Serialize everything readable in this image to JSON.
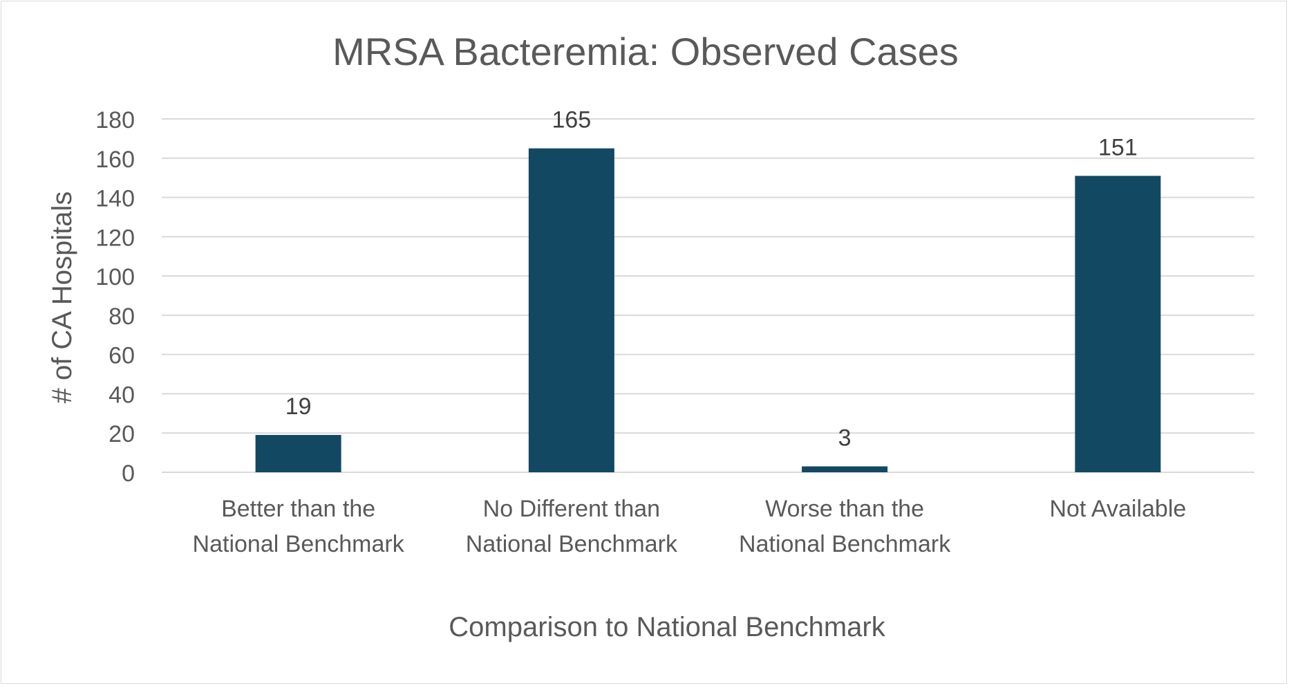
{
  "chart_data": {
    "type": "bar",
    "title": "MRSA Bacteremia: Observed Cases",
    "xlabel": "Comparison to National Benchmark",
    "ylabel": "# of CA Hospitals",
    "categories": [
      [
        "Better than the",
        "National Benchmark"
      ],
      [
        "No Different than",
        "National Benchmark"
      ],
      [
        "Worse than the",
        "National Benchmark"
      ],
      [
        "Not Available"
      ]
    ],
    "values": [
      19,
      165,
      3,
      151
    ],
    "data_labels": [
      "19",
      "165",
      "3",
      "151"
    ],
    "ylim": [
      0,
      180
    ],
    "yticks": [
      0,
      20,
      40,
      60,
      80,
      100,
      120,
      140,
      160,
      180
    ],
    "grid": true,
    "legend": "none",
    "colors": {
      "bar": "#124862",
      "grid": "#d9d9d9",
      "text": "#595959",
      "data_label": "#404040"
    }
  }
}
